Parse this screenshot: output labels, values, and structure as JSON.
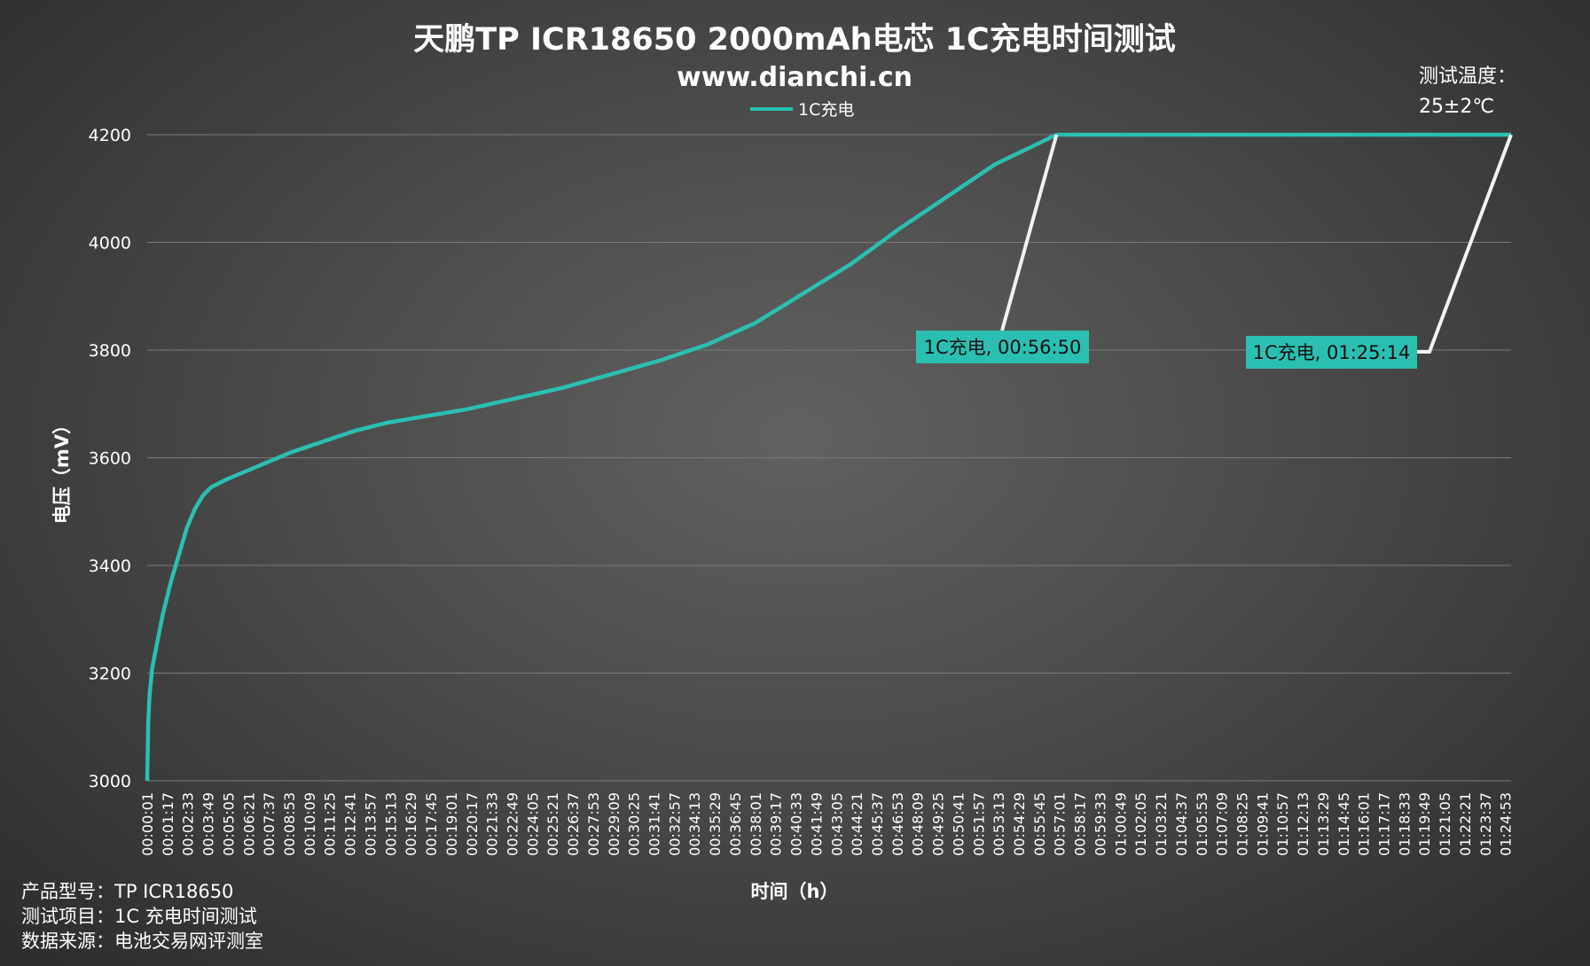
{
  "colors": {
    "series": "#2bbfb1",
    "leader": "#f2f2f2",
    "grid": "#7a7a7a"
  },
  "temp": {
    "label": "测试温度：",
    "value": "25±2℃"
  },
  "footer": {
    "model": "产品型号：TP ICR18650",
    "item": "测试项目：1C 充电时间测试",
    "source": "数据来源：电池交易网评测室"
  },
  "chart_data": {
    "type": "line",
    "title": "天鹏TP ICR18650 2000mAh电芯 1C充电时间测试",
    "subtitle": "www.dianchi.cn",
    "xlabel": "时间（h）",
    "ylabel": "电压（mV）",
    "ylim": [
      3000,
      4200
    ],
    "grid": "horizontal",
    "legend_position": "top-center",
    "x_ticks": [
      "00:00:01",
      "00:01:17",
      "00:02:33",
      "00:03:49",
      "00:05:05",
      "00:06:21",
      "00:07:37",
      "00:08:53",
      "00:10:09",
      "00:11:25",
      "00:12:41",
      "00:13:57",
      "00:15:13",
      "00:16:29",
      "00:17:45",
      "00:19:01",
      "00:20:17",
      "00:21:33",
      "00:22:49",
      "00:24:05",
      "00:25:21",
      "00:26:37",
      "00:27:53",
      "00:29:09",
      "00:30:25",
      "00:31:41",
      "00:32:57",
      "00:34:13",
      "00:35:29",
      "00:36:45",
      "00:38:01",
      "00:39:17",
      "00:40:33",
      "00:41:49",
      "00:43:05",
      "00:44:21",
      "00:45:37",
      "00:46:53",
      "00:48:09",
      "00:49:25",
      "00:50:41",
      "00:51:57",
      "00:53:13",
      "00:54:29",
      "00:55:45",
      "00:57:01",
      "00:58:17",
      "00:59:33",
      "01:00:49",
      "01:02:05",
      "01:03:21",
      "01:04:37",
      "01:05:53",
      "01:07:09",
      "01:08:25",
      "01:09:41",
      "01:10:57",
      "01:12:13",
      "01:13:29",
      "01:14:45",
      "01:16:01",
      "01:17:17",
      "01:18:33",
      "01:19:49",
      "01:21:05",
      "01:22:21",
      "01:23:37",
      "01:24:53"
    ],
    "y_ticks": [
      3000,
      3200,
      3400,
      3600,
      3800,
      4000,
      4200
    ],
    "series": [
      {
        "name": "1C充电",
        "x": [
          "00:00:01",
          "00:00:05",
          "00:00:10",
          "00:00:20",
          "00:00:40",
          "00:01:00",
          "00:01:30",
          "00:02:00",
          "00:02:30",
          "00:03:00",
          "00:03:30",
          "00:04:00",
          "00:05:00",
          "00:07:00",
          "00:09:00",
          "00:11:00",
          "00:13:00",
          "00:15:00",
          "00:17:00",
          "00:20:00",
          "00:23:00",
          "00:26:00",
          "00:29:00",
          "00:32:00",
          "00:35:00",
          "00:38:00",
          "00:41:00",
          "00:44:00",
          "00:47:00",
          "00:50:00",
          "00:53:00",
          "00:56:50",
          "01:00:00",
          "01:05:00",
          "01:10:00",
          "01:15:00",
          "01:20:00",
          "01:25:14"
        ],
        "values": [
          3000,
          3110,
          3160,
          3210,
          3260,
          3310,
          3370,
          3420,
          3470,
          3505,
          3530,
          3545,
          3560,
          3585,
          3610,
          3630,
          3650,
          3665,
          3675,
          3690,
          3710,
          3730,
          3755,
          3780,
          3810,
          3850,
          3905,
          3960,
          4025,
          4085,
          4145,
          4200,
          4200,
          4200,
          4200,
          4200,
          4200,
          4200
        ]
      }
    ],
    "annotations": [
      {
        "text": "1C充电, 00:56:50",
        "x": "00:56:50",
        "y": 4200
      },
      {
        "text": "1C充电, 01:25:14",
        "x": "01:25:14",
        "y": 4200
      }
    ]
  }
}
